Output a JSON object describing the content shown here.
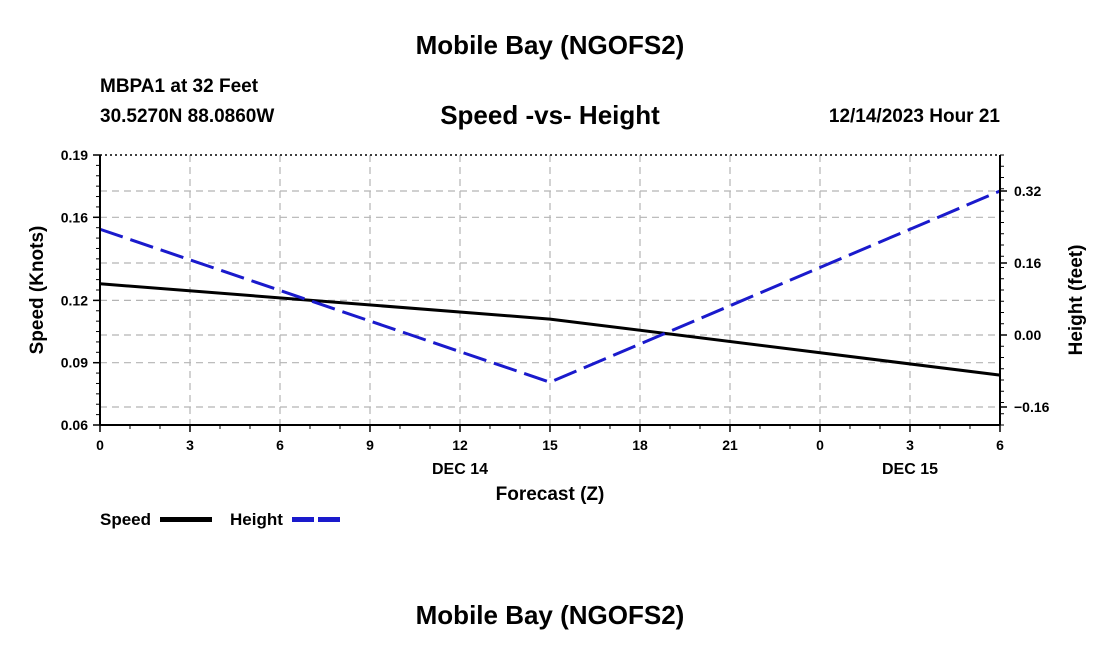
{
  "page": {
    "top_title": "Mobile Bay (NGOFS2)",
    "bottom_title": "Mobile Bay (NGOFS2)",
    "station": "MBPA1 at 32 Feet",
    "coords": "30.5270N  88.0860W",
    "subtitle": "Speed -vs- Height",
    "datetime": "12/14/2023 Hour 21"
  },
  "legend": {
    "speed_label": "Speed",
    "height_label": "Height"
  },
  "colors": {
    "speed": "#000000",
    "height": "#1a1acc",
    "grid": "#b4b4b4"
  },
  "chart_data": {
    "type": "line",
    "title": "Speed -vs- Height",
    "xlabel": "Forecast (Z)",
    "ylabel_left": "Speed (Knots)",
    "ylabel_right": "Height (feet)",
    "x": [
      0,
      3,
      6,
      9,
      12,
      15,
      18,
      21,
      24,
      27,
      30
    ],
    "x_tick_labels": [
      "0",
      "3",
      "6",
      "9",
      "12",
      "15",
      "18",
      "21",
      "0",
      "3",
      "6"
    ],
    "date_labels": [
      {
        "x": 12,
        "label": "DEC 14"
      },
      {
        "x": 27,
        "label": "DEC 15"
      }
    ],
    "xlim": [
      0,
      30
    ],
    "ylim_left": [
      0.06,
      0.19
    ],
    "yticks_left": [
      "0.06",
      "0.09",
      "0.12",
      "0.16",
      "0.19"
    ],
    "ytick_values_left": [
      0.06,
      0.09,
      0.12,
      0.16,
      0.19
    ],
    "ylim_right": [
      -0.2,
      0.4
    ],
    "yticks_right": [
      "−0.16",
      "0.00",
      "0.16",
      "0.32"
    ],
    "ytick_values_right": [
      -0.16,
      0.0,
      0.16,
      0.32
    ],
    "grid": true,
    "series": [
      {
        "name": "Speed",
        "axis": "left",
        "style": "solid",
        "x": [
          0,
          15,
          30
        ],
        "values": [
          0.128,
          0.111,
          0.084
        ]
      },
      {
        "name": "Height",
        "axis": "right",
        "style": "dashed",
        "x": [
          0,
          15,
          30
        ],
        "values": [
          0.235,
          -0.105,
          0.32
        ]
      }
    ]
  }
}
